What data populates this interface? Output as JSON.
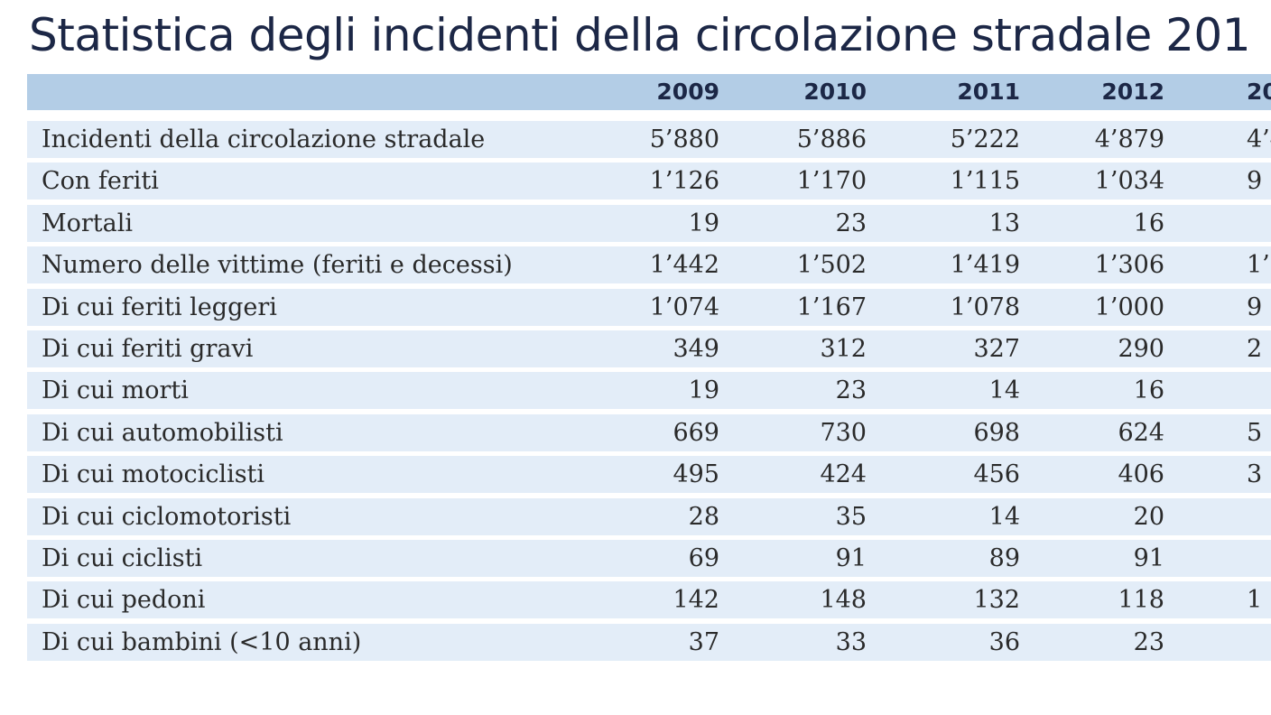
{
  "title": "Statistica degli incidenti della circolazione stradale 201",
  "table": {
    "header": [
      null,
      "2009",
      "2010",
      "2011",
      "2012",
      "20"
    ],
    "rows": [
      [
        "Incidenti della circolazione stradale",
        "5’880",
        "5’886",
        "5’222",
        "4’879",
        "4’4"
      ],
      [
        "Con feriti",
        "1’126",
        "1’170",
        "1’115",
        "1’034",
        "9"
      ],
      [
        "Mortali",
        "19",
        "23",
        "13",
        "16",
        null
      ],
      [
        "Numero delle vittime (feriti e decessi)",
        "1’442",
        "1’502",
        "1’419",
        "1’306",
        "1’"
      ],
      [
        "Di cui feriti leggeri",
        "1’074",
        "1’167",
        "1’078",
        "1’000",
        "9"
      ],
      [
        "Di cui feriti gravi",
        "349",
        "312",
        "327",
        "290",
        "2"
      ],
      [
        "Di cui morti",
        "19",
        "23",
        "14",
        "16",
        null
      ],
      [
        "Di cui automobilisti",
        "669",
        "730",
        "698",
        "624",
        "5"
      ],
      [
        "Di cui motociclisti",
        "495",
        "424",
        "456",
        "406",
        "3"
      ],
      [
        "Di cui ciclomotoristi",
        "28",
        "35",
        "14",
        "20",
        null
      ],
      [
        "Di cui ciclisti",
        "69",
        "91",
        "89",
        "91",
        null
      ],
      [
        "Di cui pedoni",
        "142",
        "148",
        "132",
        "118",
        "1"
      ],
      [
        "Di cui bambini (<10 anni)",
        "37",
        "33",
        "36",
        "23",
        null
      ]
    ]
  }
}
